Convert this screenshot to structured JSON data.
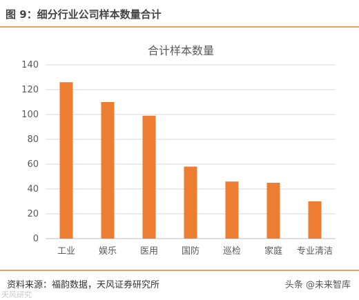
{
  "figure": {
    "title": "图 9：细分行业公司样本数量合计",
    "source": "资料来源：福韵数据，天风证券研究所",
    "watermark_left": "天风研究",
    "watermark_right": "头条 @未来智库"
  },
  "colors": {
    "bar": "#ED7D31",
    "rule": "#E4A060",
    "grid": "#D9D9D9"
  },
  "chart_data": {
    "type": "bar",
    "title": "合计样本数量",
    "categories": [
      "工业",
      "娱乐",
      "医用",
      "国防",
      "巡检",
      "家庭",
      "专业清洁"
    ],
    "values": [
      126,
      110,
      99,
      58,
      46,
      45,
      30
    ],
    "ylim": [
      0,
      140
    ],
    "yticks": [
      0,
      20,
      40,
      60,
      80,
      100,
      120,
      140
    ],
    "xlabel": "",
    "ylabel": "",
    "grid": true,
    "legend": "none"
  }
}
